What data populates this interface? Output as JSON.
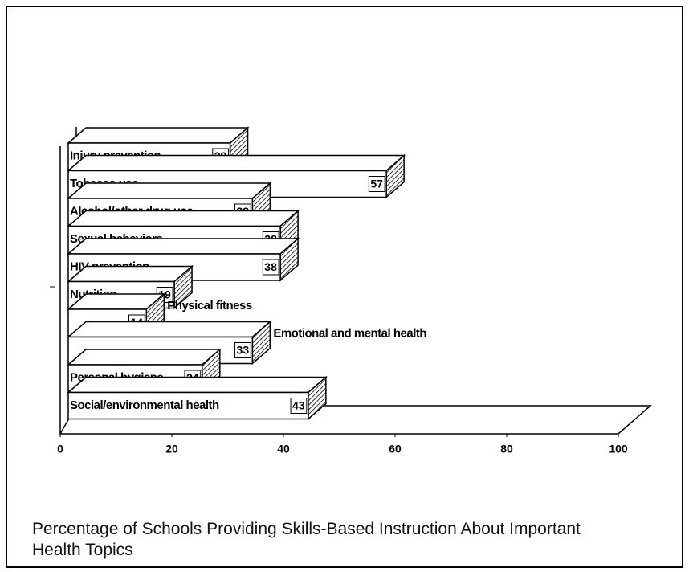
{
  "chart_data": {
    "type": "bar3d_horizontal",
    "title": "Percentage of Schools Providing Skills-Based Instruction About Important Health Topics",
    "categories": [
      "Injury prevention",
      "Tobacco use",
      "Alcohol/other drug use",
      "Sexual behaviors",
      "HIV prevention",
      "Nutrition",
      "Physical fitness",
      "Emotional and mental health",
      "Personal hygiene",
      "Social/environmental health"
    ],
    "values": [
      29,
      57,
      33,
      38,
      38,
      19,
      14,
      33,
      24,
      43
    ],
    "color": "#ffffff",
    "xlim": [
      0,
      100
    ],
    "xticks": [
      0,
      20,
      40,
      60,
      80,
      100
    ],
    "grid": false
  }
}
